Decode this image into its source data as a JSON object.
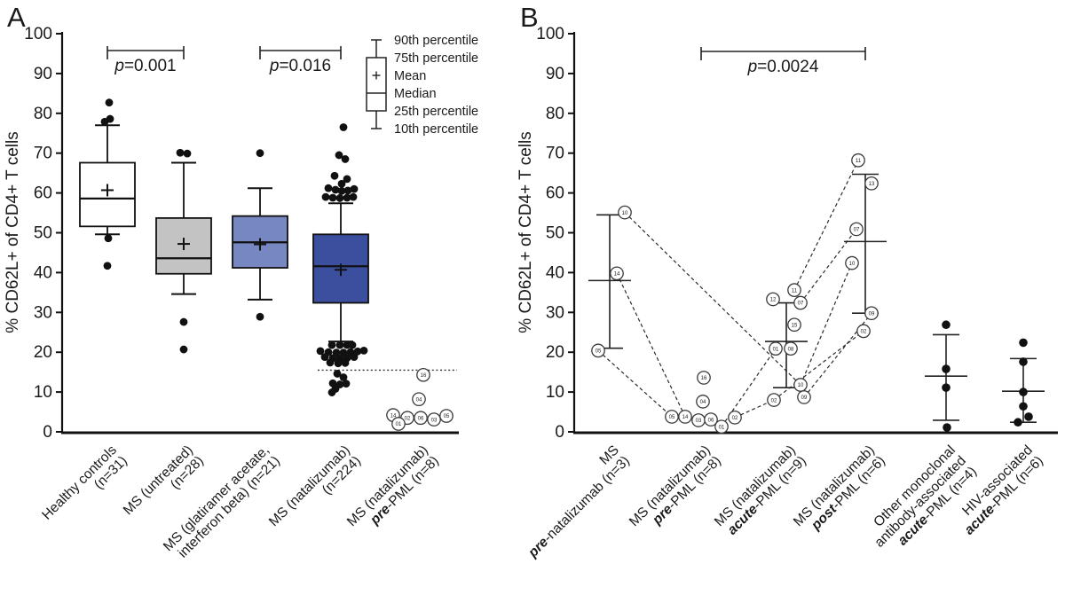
{
  "figure": {
    "panels": [
      {
        "letter": "A"
      },
      {
        "letter": "B"
      }
    ]
  },
  "chart_data": [
    {
      "panel": "A",
      "type": "box",
      "ylabel": "% CD62L+ of CD4+ T cells",
      "ylim": [
        0,
        100
      ],
      "yticks": [
        0,
        10,
        20,
        30,
        40,
        50,
        60,
        70,
        80,
        90,
        100
      ],
      "legend": {
        "entries": [
          "90th percentile",
          "75th percentile",
          "Mean",
          "Median",
          "25th percentile",
          "10th percentile"
        ]
      },
      "significance": [
        {
          "from": 0,
          "to": 1,
          "label": "p=0.001"
        },
        {
          "from": 2,
          "to": 3,
          "label": "p=0.016"
        }
      ],
      "reference_line": {
        "value": 15.5,
        "style": "dotted"
      },
      "groups": [
        {
          "label_lines": [
            [
              {
                "t": "Healthy controls"
              }
            ],
            [
              {
                "t": "(n=31)"
              }
            ]
          ],
          "box": {
            "fill": "#ffffff",
            "p90": 77,
            "p75": 67.6,
            "mean": 60.7,
            "median": 58.6,
            "p25": 51.6,
            "p10": 49.6
          },
          "outliers": [
            {
              "dx": 2,
              "v": 82.7
            },
            {
              "dx": 3,
              "v": 78.6
            },
            {
              "dx": -3,
              "v": 77.9
            },
            {
              "dx": 1,
              "v": 48.6
            },
            {
              "dx": 0,
              "v": 41.7
            }
          ]
        },
        {
          "label_lines": [
            [
              {
                "t": "MS (untreated)"
              }
            ],
            [
              {
                "t": "(n=28)"
              }
            ]
          ],
          "box": {
            "fill": "#c3c3c3",
            "p90": 67.6,
            "p75": 53.7,
            "mean": 47.2,
            "median": 43.6,
            "p25": 39.7,
            "p10": 34.6
          },
          "outliers": [
            {
              "dx": -4,
              "v": 70.1
            },
            {
              "dx": 4,
              "v": 69.9
            },
            {
              "dx": 0,
              "v": 27.6
            },
            {
              "dx": 0,
              "v": 20.7
            }
          ]
        },
        {
          "label_lines": [
            [
              {
                "t": "MS (glatiramer acetate,"
              }
            ],
            [
              {
                "t": "interferon beta) (n=21)"
              }
            ]
          ],
          "box": {
            "fill": "#7787c1",
            "p90": 61.2,
            "p75": 54.2,
            "mean": 47.1,
            "median": 47.6,
            "p25": 41.2,
            "p10": 33.2
          },
          "outliers": [
            {
              "dx": 0,
              "v": 70.0
            },
            {
              "dx": 0,
              "v": 28.9
            }
          ]
        },
        {
          "label_lines": [
            [
              {
                "t": "MS (natalizumab)"
              }
            ],
            [
              {
                "t": "(n=224)"
              }
            ]
          ],
          "box": {
            "fill": "#3c4f9e",
            "p90": 57.4,
            "p75": 49.6,
            "mean": 40.7,
            "median": 41.6,
            "p25": 32.4,
            "p10": 22.7
          },
          "outliers": [
            {
              "dx": 3,
              "v": 76.5
            },
            {
              "dx": -2,
              "v": 69.5
            },
            {
              "dx": 5,
              "v": 68.5
            },
            {
              "dx": -7,
              "v": 64.3
            },
            {
              "dx": 7,
              "v": 63.5
            },
            {
              "dx": 1,
              "v": 62.3
            },
            {
              "dx": -14,
              "v": 61.2
            },
            {
              "dx": -6,
              "v": 60.8
            },
            {
              "dx": 1,
              "v": 60.5
            },
            {
              "dx": 8,
              "v": 60.6
            },
            {
              "dx": 15,
              "v": 61.0
            },
            {
              "dx": -17,
              "v": 59.0
            },
            {
              "dx": -9,
              "v": 58.8
            },
            {
              "dx": -1,
              "v": 58.7
            },
            {
              "dx": 7,
              "v": 58.8
            },
            {
              "dx": 14,
              "v": 59.0
            },
            {
              "dx": -10,
              "v": 21.8
            },
            {
              "dx": -1,
              "v": 21.8
            },
            {
              "dx": 7,
              "v": 21.8
            },
            {
              "dx": 13,
              "v": 21.8
            },
            {
              "dx": -23,
              "v": 20.3
            },
            {
              "dx": -14,
              "v": 20.0
            },
            {
              "dx": -5,
              "v": 19.9
            },
            {
              "dx": 3,
              "v": 19.9
            },
            {
              "dx": 11,
              "v": 20.0
            },
            {
              "dx": 19,
              "v": 20.2
            },
            {
              "dx": 26,
              "v": 20.4
            },
            {
              "dx": -18,
              "v": 18.8
            },
            {
              "dx": -9,
              "v": 18.5
            },
            {
              "dx": -1,
              "v": 18.4
            },
            {
              "dx": 7,
              "v": 18.5
            },
            {
              "dx": 15,
              "v": 18.8
            },
            {
              "dx": -12,
              "v": 17.4
            },
            {
              "dx": -3,
              "v": 17.2
            },
            {
              "dx": 5,
              "v": 17.3
            },
            {
              "dx": -4,
              "v": 14.6
            },
            {
              "dx": 3,
              "v": 13.7
            },
            {
              "dx": -9,
              "v": 12.2
            },
            {
              "dx": -1,
              "v": 11.9
            },
            {
              "dx": 6,
              "v": 12.1
            },
            {
              "dx": -6,
              "v": 10.8
            },
            {
              "dx": -10,
              "v": 9.9
            }
          ]
        },
        {
          "label_lines": [
            [
              {
                "t": "MS (natalizumab)"
              }
            ],
            [
              {
                "t": "pre",
                "em": true
              },
              {
                "t": "-PML (n=8)"
              }
            ]
          ],
          "points": [
            {
              "id": "16",
              "dx": 5,
              "v": 14.3
            },
            {
              "id": "04",
              "dx": 0,
              "v": 8.2
            },
            {
              "id": "14",
              "dx": -29,
              "v": 4.2
            },
            {
              "id": "05",
              "dx": 31,
              "v": 4.0
            },
            {
              "id": "02",
              "dx": -13,
              "v": 3.5
            },
            {
              "id": "06",
              "dx": 2,
              "v": 3.5
            },
            {
              "id": "03",
              "dx": 17,
              "v": 3.1
            },
            {
              "id": "01",
              "dx": -23,
              "v": 2.0
            }
          ]
        }
      ]
    },
    {
      "panel": "B",
      "type": "scatter",
      "ylabel": "% CD62L+ of CD4+ T cells",
      "ylim": [
        0,
        100
      ],
      "yticks": [
        0,
        10,
        20,
        30,
        40,
        50,
        60,
        70,
        80,
        90,
        100
      ],
      "significance": [
        {
          "from": 1,
          "to": 3,
          "label": "p=0.0024"
        }
      ],
      "groups": [
        {
          "label_lines": [
            [
              {
                "t": "MS"
              }
            ],
            [
              {
                "t": "pre",
                "em": true
              },
              {
                "t": "-natalizumab (n=3)"
              }
            ]
          ],
          "err": {
            "mean": 38.0,
            "top": 54.5,
            "bottom": 21.0
          },
          "points": [
            {
              "id": "10",
              "dx": 17,
              "v": 55.1
            },
            {
              "id": "14",
              "dx": 8,
              "v": 39.8
            },
            {
              "id": "05",
              "dx": -13,
              "v": 20.4
            }
          ]
        },
        {
          "label_lines": [
            [
              {
                "t": "MS (natalizumab)"
              }
            ],
            [
              {
                "t": "pre",
                "em": true
              },
              {
                "t": "-PML (n=8)"
              }
            ]
          ],
          "err": null,
          "points": [
            {
              "id": "16",
              "dx": 3,
              "v": 13.6
            },
            {
              "id": "04",
              "dx": 2,
              "v": 7.6
            },
            {
              "id": "05",
              "dx": -33,
              "v": 3.8
            },
            {
              "id": "14",
              "dx": -18,
              "v": 3.8
            },
            {
              "id": "03",
              "dx": -3,
              "v": 2.9
            },
            {
              "id": "06",
              "dx": 11,
              "v": 3.1
            },
            {
              "id": "01",
              "dx": 23,
              "v": 1.3
            },
            {
              "id": "02",
              "dx": 38,
              "v": 3.6
            }
          ]
        },
        {
          "label_lines": [
            [
              {
                "t": "MS (natalizumab)"
              }
            ],
            [
              {
                "t": "acute",
                "em": true
              },
              {
                "t": "-PML (n=9)"
              }
            ]
          ],
          "err": {
            "mean": 22.7,
            "top": 32.4,
            "bottom": 11.1
          },
          "points": [
            {
              "id": "11",
              "dx": 9,
              "v": 35.6
            },
            {
              "id": "12",
              "dx": -15,
              "v": 33.3
            },
            {
              "id": "07",
              "dx": 16,
              "v": 32.4
            },
            {
              "id": "15",
              "dx": 9,
              "v": 26.9
            },
            {
              "id": "01",
              "dx": -12,
              "v": 20.9
            },
            {
              "id": "08",
              "dx": 5,
              "v": 20.9
            },
            {
              "id": "10",
              "dx": 16,
              "v": 11.8
            },
            {
              "id": "09",
              "dx": 20,
              "v": 8.7
            },
            {
              "id": "02",
              "dx": -14,
              "v": 8.0
            }
          ]
        },
        {
          "label_lines": [
            [
              {
                "t": "MS (natalizumab)"
              }
            ],
            [
              {
                "t": "post",
                "em": true
              },
              {
                "t": "-PML (n=6)"
              }
            ]
          ],
          "err": {
            "mean": 47.8,
            "top": 64.7,
            "bottom": 29.8
          },
          "points": [
            {
              "id": "11",
              "dx": -8,
              "v": 68.2
            },
            {
              "id": "13",
              "dx": 7,
              "v": 62.4
            },
            {
              "id": "07",
              "dx": -10,
              "v": 50.9
            },
            {
              "id": "10",
              "dx": -15,
              "v": 42.4
            },
            {
              "id": "09",
              "dx": 7,
              "v": 29.8
            },
            {
              "id": "02",
              "dx": -2,
              "v": 25.3
            }
          ]
        },
        {
          "label_lines": [
            [
              {
                "t": "Other monoclonal"
              }
            ],
            [
              {
                "t": "antibody-associated"
              }
            ],
            [
              {
                "t": "acute",
                "em": true
              },
              {
                "t": "-PML (n=4)"
              }
            ]
          ],
          "solid": true,
          "err": {
            "mean": 14.0,
            "top": 24.4,
            "bottom": 2.9
          },
          "points": [
            {
              "dx": 0,
              "v": 26.9
            },
            {
              "dx": 0,
              "v": 15.8
            },
            {
              "dx": 0,
              "v": 11.1
            },
            {
              "dx": 1,
              "v": 1.1
            }
          ]
        },
        {
          "label_lines": [
            [
              {
                "t": "HIV-associated"
              }
            ],
            [
              {
                "t": "acute",
                "em": true
              },
              {
                "t": "-PML (n=6)"
              }
            ]
          ],
          "solid": true,
          "err": {
            "mean": 10.2,
            "top": 18.4,
            "bottom": 2.4
          },
          "points": [
            {
              "dx": 0,
              "v": 22.4
            },
            {
              "dx": 0,
              "v": 17.6
            },
            {
              "dx": 0,
              "v": 10.0
            },
            {
              "dx": 0,
              "v": 6.4
            },
            {
              "dx": 6,
              "v": 3.8
            },
            {
              "dx": -6,
              "v": 2.4
            }
          ]
        }
      ],
      "connections": [
        {
          "g1": 0,
          "id1": "10",
          "g2": 2,
          "id2": "10"
        },
        {
          "g1": 0,
          "id1": "14",
          "g2": 1,
          "id2": "14"
        },
        {
          "g1": 0,
          "id1": "05",
          "g2": 1,
          "id2": "05"
        },
        {
          "g1": 1,
          "id1": "01",
          "g2": 2,
          "id2": "01"
        },
        {
          "g1": 1,
          "id1": "02",
          "g2": 2,
          "id2": "02"
        },
        {
          "g1": 2,
          "id1": "11",
          "g2": 3,
          "id2": "11"
        },
        {
          "g1": 2,
          "id1": "07",
          "g2": 3,
          "id2": "07"
        },
        {
          "g1": 2,
          "id1": "10",
          "g2": 3,
          "id2": "10"
        },
        {
          "g1": 2,
          "id1": "09",
          "g2": 3,
          "id2": "09"
        },
        {
          "g1": 2,
          "id1": "02",
          "g2": 3,
          "id2": "02"
        }
      ]
    }
  ]
}
